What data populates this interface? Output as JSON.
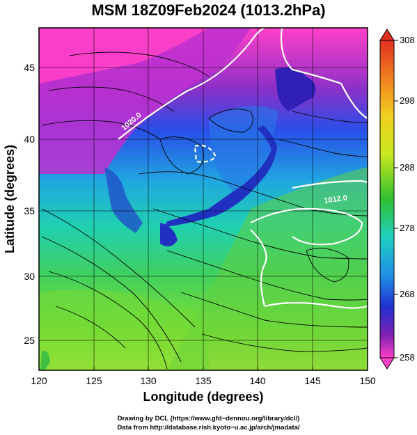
{
  "title": "MSM 18Z09Feb2024 (1013.2hPa)",
  "axes": {
    "xlabel": "Longitude (degrees)",
    "ylabel": "Latitude  (degrees)",
    "x_ticks": [
      "120",
      "125",
      "130",
      "135",
      "140",
      "145",
      "150"
    ],
    "y_ticks": [
      "25",
      "30",
      "35",
      "40",
      "45"
    ]
  },
  "colorbar": {
    "labels": [
      "308",
      "298",
      "288",
      "278",
      "268",
      "258"
    ],
    "colors": {
      "top": "#e03020",
      "orange": "#f5a020",
      "yellow": "#e8e820",
      "green": "#30c030",
      "cyan": "#20c8d0",
      "blue": "#2040e0",
      "purple": "#7020b0",
      "bottom": "#ff40c8"
    }
  },
  "contours": {
    "labels": [
      "1020.0",
      "1012.0"
    ]
  },
  "footer": {
    "line1": "Drawing by DCL (https://www.gfd−dennou.org/library/dcl/)",
    "line2": "Data from http://database.rish.kyoto−u.ac.jp/arch/jmadata/"
  },
  "chart_data": {
    "type": "heatmap",
    "title": "MSM 18Z09Feb2024 (1013.2hPa)",
    "xlabel": "Longitude (degrees)",
    "ylabel": "Latitude  (degrees)",
    "xlim": [
      120,
      150
    ],
    "ylim": [
      22.5,
      48
    ],
    "color_range": [
      258,
      308
    ],
    "colorbar_ticks": [
      258,
      268,
      278,
      288,
      298,
      308
    ],
    "contour_levels": [
      1012.0,
      1020.0
    ]
  }
}
